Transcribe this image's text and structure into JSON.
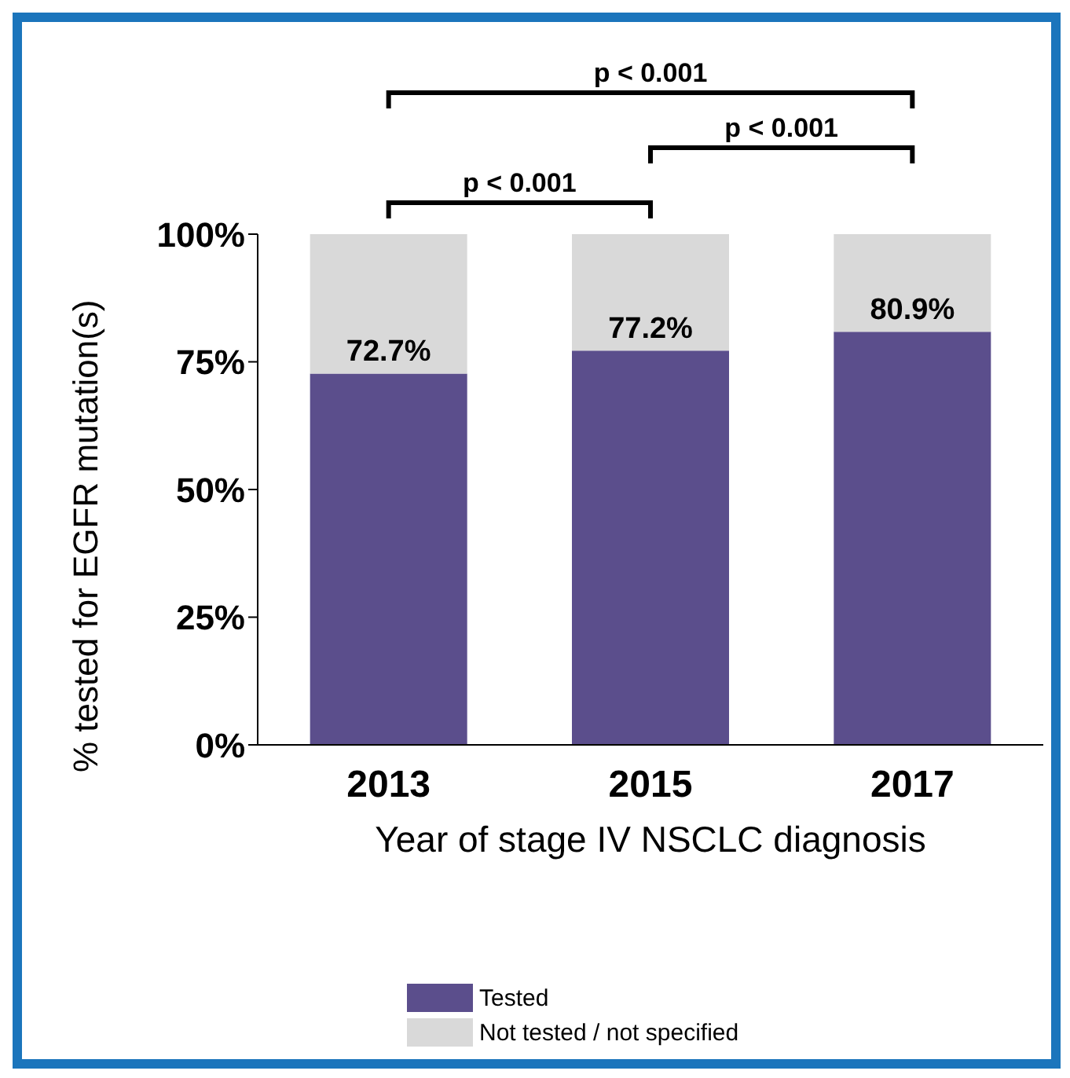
{
  "chart_data": {
    "type": "bar",
    "stacked": true,
    "categories": [
      "2013",
      "2015",
      "2017"
    ],
    "series": [
      {
        "name": "Tested",
        "color": "#5b4e8c",
        "values": [
          72.7,
          77.2,
          80.9
        ],
        "value_labels": [
          "72.7%",
          "77.2%",
          "80.9%"
        ]
      },
      {
        "name": "Not tested / not specified",
        "color": "#d9d9d9",
        "values": [
          27.3,
          22.8,
          19.1
        ]
      }
    ],
    "xlabel": "Year of stage IV NSCLC diagnosis",
    "ylabel": "% tested for EGFR mutation(s)",
    "ylim": [
      0,
      100
    ],
    "yticks": [
      {
        "value": 0,
        "label": "0%"
      },
      {
        "value": 25,
        "label": "25%"
      },
      {
        "value": 50,
        "label": "50%"
      },
      {
        "value": 75,
        "label": "75%"
      },
      {
        "value": 100,
        "label": "100%"
      }
    ],
    "grid": false,
    "legend": "bottom",
    "annotations": [
      "p < 0.001",
      "p < 0.001",
      "p < 0.001"
    ]
  }
}
